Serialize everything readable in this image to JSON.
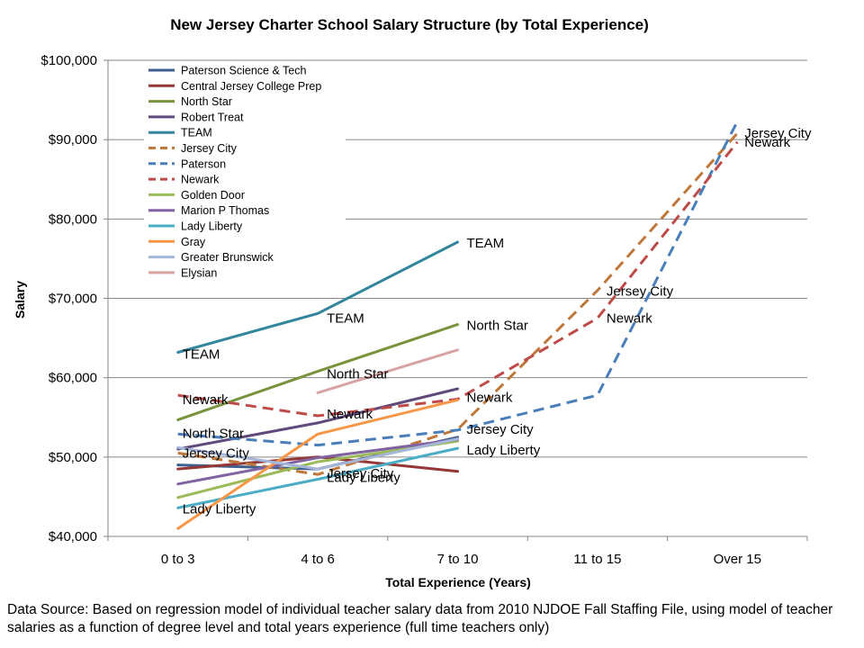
{
  "chart_data": {
    "type": "line",
    "title": "New Jersey Charter School Salary Structure (by Total Experience)",
    "xlabel": "Total Experience (Years)",
    "ylabel": "Salary",
    "categories": [
      "0 to 3",
      "4 to 6",
      "7 to 10",
      "11 to 15",
      "Over 15"
    ],
    "ylim": [
      40000,
      100000
    ],
    "yticks": [
      40000,
      50000,
      60000,
      70000,
      80000,
      90000,
      100000
    ],
    "ytick_labels": [
      "$40,000",
      "$50,000",
      "$60,000",
      "$70,000",
      "$80,000",
      "$90,000",
      "$100,000"
    ],
    "grid": true,
    "legend_position": "top-left",
    "series": [
      {
        "name": "Paterson Science & Tech",
        "color": "#3f5f8f",
        "dashed": false,
        "values": [
          49000,
          48500,
          52500,
          null,
          null
        ]
      },
      {
        "name": "Central Jersey College Prep",
        "color": "#953735",
        "dashed": false,
        "values": [
          48500,
          50000,
          48200,
          null,
          null
        ]
      },
      {
        "name": "North Star",
        "color": "#77933c",
        "dashed": false,
        "values": [
          54700,
          60800,
          66700,
          null,
          null
        ]
      },
      {
        "name": "Robert Treat",
        "color": "#604a7b",
        "dashed": false,
        "values": [
          51000,
          54300,
          58600,
          null,
          null
        ]
      },
      {
        "name": "TEAM",
        "color": "#31859c",
        "dashed": false,
        "values": [
          63200,
          68100,
          77100,
          null,
          null
        ]
      },
      {
        "name": "Jersey City",
        "color": "#c0773a",
        "dashed": true,
        "values": [
          50500,
          47800,
          53500,
          71000,
          90800
        ]
      },
      {
        "name": "Paterson",
        "color": "#4a7ebb",
        "dashed": true,
        "values": [
          52900,
          51500,
          53400,
          57800,
          92300
        ]
      },
      {
        "name": "Newark",
        "color": "#be4b48",
        "dashed": true,
        "values": [
          57800,
          55200,
          57300,
          67500,
          89700
        ]
      },
      {
        "name": "Golden Door",
        "color": "#9bbb59",
        "dashed": false,
        "values": [
          44900,
          49400,
          52000,
          null,
          null
        ]
      },
      {
        "name": "Marion P Thomas",
        "color": "#8064a2",
        "dashed": false,
        "values": [
          46600,
          49900,
          52200,
          null,
          null
        ]
      },
      {
        "name": "Lady Liberty",
        "color": "#4bacc6",
        "dashed": false,
        "values": [
          43600,
          47200,
          51100,
          null,
          null
        ]
      },
      {
        "name": "Gray",
        "color": "#f79646",
        "dashed": false,
        "values": [
          41000,
          52900,
          57200,
          null,
          null
        ]
      },
      {
        "name": "Greater Brunswick",
        "color": "#a5b6d9",
        "dashed": false,
        "values": [
          51200,
          48500,
          52300,
          null,
          null
        ]
      },
      {
        "name": "Elysian",
        "color": "#d9a3a3",
        "dashed": false,
        "values": [
          null,
          58100,
          63500,
          null,
          null
        ]
      }
    ],
    "annotations": [
      {
        "text": "TEAM",
        "x": 0,
        "y": 63200
      },
      {
        "text": "TEAM",
        "x": 1,
        "y": 68100
      },
      {
        "text": "TEAM",
        "x": 2,
        "y": 77100
      },
      {
        "text": "North Star",
        "x": 0,
        "y": 54700
      },
      {
        "text": "North Star",
        "x": 1,
        "y": 60800
      },
      {
        "text": "North Star",
        "x": 2,
        "y": 66700
      },
      {
        "text": "Newark",
        "x": 0,
        "y": 57800
      },
      {
        "text": "Newark",
        "x": 1,
        "y": 55200
      },
      {
        "text": "Newark",
        "x": 2,
        "y": 57300
      },
      {
        "text": "Newark",
        "x": 3,
        "y": 67500
      },
      {
        "text": "Newark",
        "x": 4,
        "y": 89700
      },
      {
        "text": "Jersey City",
        "x": 0,
        "y": 50500
      },
      {
        "text": "Jersey City",
        "x": 1,
        "y": 47800
      },
      {
        "text": "Jersey City",
        "x": 2,
        "y": 53500
      },
      {
        "text": "Jersey City",
        "x": 3,
        "y": 71000
      },
      {
        "text": "Jersey City",
        "x": 4,
        "y": 90800
      },
      {
        "text": "Lady Liberty",
        "x": 0,
        "y": 43600
      },
      {
        "text": "Lady Liberty",
        "x": 1,
        "y": 47200
      },
      {
        "text": "Lady Liberty",
        "x": 2,
        "y": 51100
      }
    ]
  },
  "source_note": "Data Source: Based on regression model of individual teacher salary data from 2010 NJDOE Fall Staffing File, using model of teacher salaries as a function of degree level and total years experience (full time teachers only)"
}
